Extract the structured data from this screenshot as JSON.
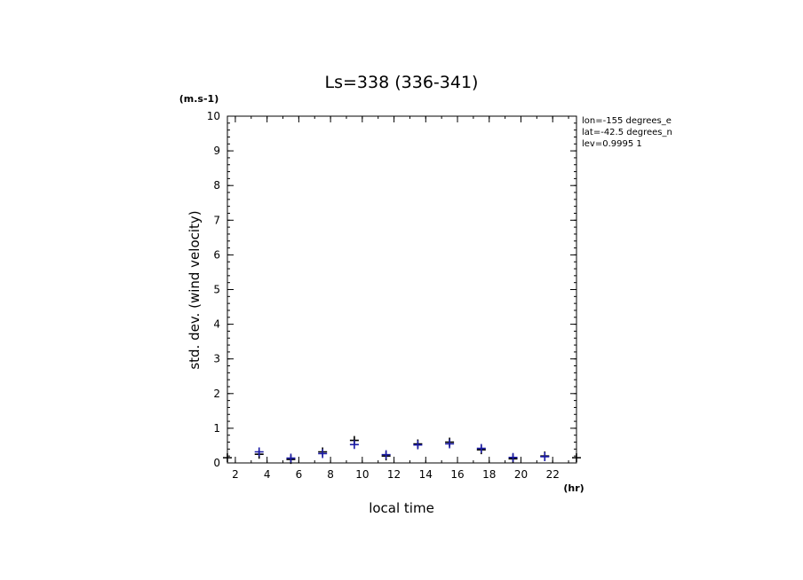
{
  "chart_data": {
    "type": "scatter",
    "title": "Ls=338 (336-341)",
    "xlabel": "local time",
    "ylabel": "std. dev. (wind velocity)",
    "x_unit": "(hr)",
    "y_unit": "(m.s-1)",
    "xlim": [
      1.5,
      23.5
    ],
    "ylim": [
      0,
      10
    ],
    "x_ticks": [
      2,
      4,
      6,
      8,
      10,
      12,
      14,
      16,
      18,
      20,
      22
    ],
    "y_ticks": [
      0,
      1,
      2,
      3,
      4,
      5,
      6,
      7,
      8,
      9,
      10
    ],
    "info_lines": [
      "lon=-155 degrees_e",
      "lat=-42.5 degrees_n",
      "lev=0.9995 1"
    ],
    "series": [
      {
        "color": "#000000",
        "x": [
          1.5,
          3.5,
          5.5,
          7.5,
          9.5,
          11.5,
          13.5,
          15.5,
          17.5,
          19.5,
          21.5,
          23.5
        ],
        "y": [
          0.15,
          0.25,
          0.1,
          0.32,
          0.65,
          0.2,
          0.55,
          0.6,
          0.38,
          0.12,
          0.2,
          0.15
        ]
      },
      {
        "color": "#1a1aa6",
        "x": [
          3.5,
          5.5,
          7.5,
          9.5,
          11.5,
          13.5,
          15.5,
          17.5,
          19.5,
          21.5
        ],
        "y": [
          0.32,
          0.14,
          0.27,
          0.53,
          0.24,
          0.52,
          0.55,
          0.42,
          0.16,
          0.18
        ]
      }
    ]
  }
}
